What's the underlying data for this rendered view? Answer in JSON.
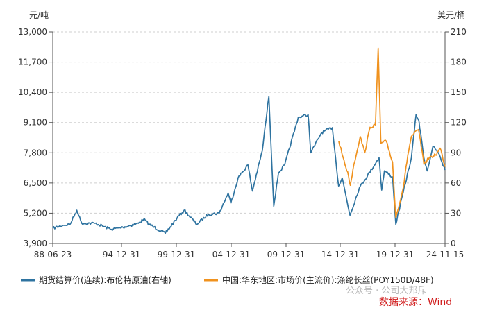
{
  "chart_data": {
    "type": "line",
    "title": "",
    "left_axis": {
      "unit": "元/吨",
      "ylim": [
        3900,
        13000
      ],
      "ticks": [
        "3,900",
        "5,200",
        "6,500",
        "7,800",
        "9,100",
        "10,400",
        "11,700",
        "13,000"
      ]
    },
    "right_axis": {
      "unit": "美元/桶",
      "ylim": [
        0,
        210
      ],
      "ticks": [
        "0",
        "30",
        "60",
        "90",
        "120",
        "150",
        "180",
        "210"
      ]
    },
    "x_axis": {
      "range": [
        "1988-06-23",
        "2024-11-15"
      ],
      "ticks": [
        "88-06-23",
        "94-12-31",
        "99-12-31",
        "04-12-31",
        "09-12-31",
        "14-12-31",
        "19-12-31",
        "24-11-15"
      ]
    },
    "grid": "horizontal dashed",
    "legend_position": "bottom",
    "series": [
      {
        "name": "期货结算价(连续):布伦特原油(右轴)",
        "axis": "right",
        "color": "#2e73a0",
        "points": [
          [
            "1988-06-23",
            15
          ],
          [
            "1989-06-01",
            18
          ],
          [
            "1990-02-01",
            19
          ],
          [
            "1990-09-15",
            33
          ],
          [
            "1990-11-15",
            28
          ],
          [
            "1991-03-01",
            20
          ],
          [
            "1992-06-01",
            20
          ],
          [
            "1993-12-01",
            14
          ],
          [
            "1994-12-31",
            16
          ],
          [
            "1996-06-01",
            20
          ],
          [
            "1996-12-01",
            24
          ],
          [
            "1997-06-01",
            19
          ],
          [
            "1998-12-01",
            10
          ],
          [
            "1999-12-31",
            25
          ],
          [
            "2000-09-01",
            33
          ],
          [
            "2001-11-01",
            19
          ],
          [
            "2002-12-01",
            29
          ],
          [
            "2003-12-01",
            30
          ],
          [
            "2004-10-01",
            50
          ],
          [
            "2004-12-31",
            40
          ],
          [
            "2005-09-01",
            65
          ],
          [
            "2006-08-01",
            78
          ],
          [
            "2007-01-01",
            52
          ],
          [
            "2007-12-01",
            92
          ],
          [
            "2008-07-11",
            146
          ],
          [
            "2008-12-24",
            37
          ],
          [
            "2009-06-01",
            70
          ],
          [
            "2009-12-31",
            78
          ],
          [
            "2011-04-01",
            125
          ],
          [
            "2012-03-01",
            128
          ],
          [
            "2012-06-01",
            90
          ],
          [
            "2013-06-01",
            110
          ],
          [
            "2014-06-01",
            115
          ],
          [
            "2014-12-31",
            57
          ],
          [
            "2015-05-01",
            65
          ],
          [
            "2016-01-20",
            28
          ],
          [
            "2016-12-01",
            55
          ],
          [
            "2018-10-01",
            85
          ],
          [
            "2018-12-31",
            53
          ],
          [
            "2019-04-01",
            72
          ],
          [
            "2019-12-31",
            66
          ],
          [
            "2020-04-21",
            19
          ],
          [
            "2020-12-31",
            51
          ],
          [
            "2021-10-01",
            85
          ],
          [
            "2022-03-08",
            128
          ],
          [
            "2022-06-10",
            122
          ],
          [
            "2022-12-01",
            85
          ],
          [
            "2023-03-20",
            72
          ],
          [
            "2023-09-28",
            96
          ],
          [
            "2024-04-01",
            90
          ],
          [
            "2024-11-15",
            73
          ]
        ]
      },
      {
        "name": "中国:华东地区:市场价(主流价):涤纶长丝(POY150D/48F)",
        "axis": "left",
        "color": "#f0921e",
        "points": [
          [
            "2015-01-05",
            8300
          ],
          [
            "2015-06-01",
            7600
          ],
          [
            "2015-12-01",
            6800
          ],
          [
            "2016-02-01",
            6400
          ],
          [
            "2016-06-01",
            7300
          ],
          [
            "2017-01-01",
            8500
          ],
          [
            "2017-06-01",
            7800
          ],
          [
            "2017-12-01",
            8900
          ],
          [
            "2018-06-01",
            9000
          ],
          [
            "2018-09-01",
            12300
          ],
          [
            "2018-12-01",
            8200
          ],
          [
            "2019-06-01",
            8300
          ],
          [
            "2019-12-31",
            7400
          ],
          [
            "2020-04-21",
            5000
          ],
          [
            "2020-12-31",
            6300
          ],
          [
            "2021-06-01",
            7700
          ],
          [
            "2021-10-01",
            8500
          ],
          [
            "2022-06-01",
            8800
          ],
          [
            "2022-12-01",
            7300
          ],
          [
            "2023-06-01",
            7600
          ],
          [
            "2024-01-01",
            7700
          ],
          [
            "2024-06-01",
            8000
          ],
          [
            "2024-11-15",
            7200
          ]
        ]
      }
    ]
  },
  "watermark": "公众号 · 公司大邦斥",
  "source": "数据来源：Wind"
}
